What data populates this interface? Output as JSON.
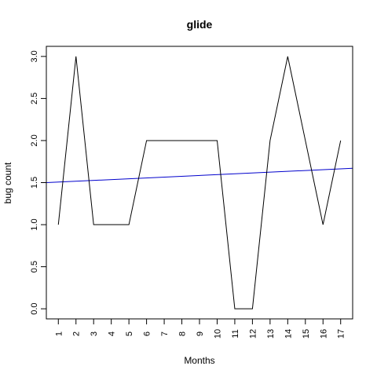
{
  "chart_data": {
    "type": "line",
    "title": "glide",
    "xlabel": "Months",
    "ylabel": "bug count",
    "x": [
      1,
      2,
      3,
      4,
      5,
      6,
      7,
      8,
      9,
      10,
      11,
      12,
      13,
      14,
      15,
      16,
      17
    ],
    "x_tick_labels": [
      "1",
      "2",
      "3",
      "4",
      "5",
      "6",
      "7",
      "8",
      "9",
      "10",
      "11",
      "12",
      "13",
      "14",
      "15",
      "16",
      "17"
    ],
    "y_ticks": [
      0.0,
      0.5,
      1.0,
      1.5,
      2.0,
      2.5,
      3.0
    ],
    "y_tick_labels": [
      "0.0",
      "0.5",
      "1.0",
      "1.5",
      "2.0",
      "2.5",
      "3.0"
    ],
    "xlim": [
      0.32,
      17.68
    ],
    "ylim": [
      -0.12,
      3.12
    ],
    "grid": false,
    "legend": "none",
    "series": [
      {
        "values": [
          1,
          3,
          1,
          1,
          1,
          2,
          2,
          2,
          2,
          2,
          0,
          0,
          2,
          3,
          2,
          1,
          2
        ],
        "color": "#000000"
      }
    ],
    "trend_line": {
      "color": "#0000cc",
      "x": [
        0.32,
        17.68
      ],
      "y": [
        1.5,
        1.67
      ]
    }
  }
}
